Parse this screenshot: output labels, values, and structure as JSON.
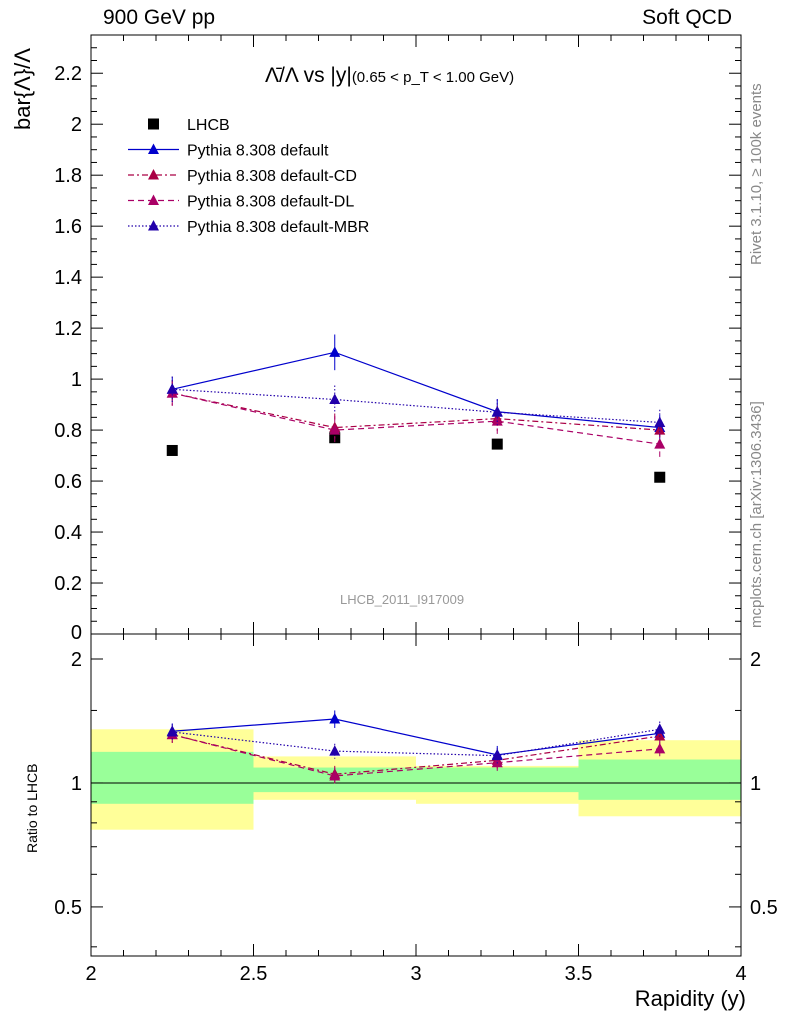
{
  "header": {
    "left_label": "900 GeV pp",
    "right_label": "Soft QCD",
    "side_label_rivet": "Rivet 3.1.10, ≥ 100k events",
    "side_label_site": "mcplots.cern.ch [arXiv:1306.3436]",
    "watermark": "LHCB_2011_I917009"
  },
  "colors": {
    "data": "#000000",
    "default": "#0000cc",
    "cd": "#aa0044",
    "dl": "#aa0066",
    "mbr": "#2200aa",
    "band_inner": "#99ff99",
    "band_outer": "#ffff99"
  },
  "chart_data": [
    {
      "type": "line",
      "panel": "main",
      "title_main": "Λ̄/Λ vs |y|",
      "title_cut": "(0.65 < p_T < 1.00 GeV)",
      "ylabel": "bar{Λ}/Λ",
      "xlabel": "",
      "xlim": [
        2,
        4
      ],
      "ylim": [
        0,
        2.35
      ],
      "xticks": [
        2,
        2.5,
        3,
        3.5,
        4
      ],
      "xtick_labels": [
        "2",
        "2.5",
        "3",
        "3.5",
        "4"
      ],
      "yticks": [
        0.2,
        0.4,
        0.6,
        0.8,
        1,
        1.2,
        1.4,
        1.6,
        1.8,
        2,
        2.2
      ],
      "ytick_labels": [
        "0.2",
        "0.4",
        "0.6",
        "0.8",
        "1",
        "1.2",
        "1.4",
        "1.6",
        "1.8",
        "2",
        "2.2"
      ],
      "ytick_zero_label": "0",
      "x": [
        2.25,
        2.75,
        3.25,
        3.75
      ],
      "series": [
        {
          "name": "LHCB",
          "key": "data",
          "style": "markers",
          "values": [
            0.72,
            0.77,
            0.745,
            0.615
          ],
          "errors": [
            0.012,
            0.015,
            0.012,
            0.012
          ]
        },
        {
          "name": "Pythia 8.308 default",
          "key": "default",
          "style": "solid",
          "values": [
            0.96,
            1.105,
            0.872,
            0.81
          ],
          "errors": [
            0.05,
            0.07,
            0.05,
            0.05
          ]
        },
        {
          "name": "Pythia 8.308 default-CD",
          "key": "cd",
          "style": "dashdot",
          "values": [
            0.945,
            0.81,
            0.845,
            0.8
          ],
          "errors": [
            0.05,
            0.055,
            0.05,
            0.05
          ]
        },
        {
          "name": "Pythia 8.308 default-DL",
          "key": "dl",
          "style": "dashed",
          "values": [
            0.945,
            0.8,
            0.835,
            0.745
          ],
          "errors": [
            0.05,
            0.055,
            0.05,
            0.05
          ]
        },
        {
          "name": "Pythia 8.308 default-MBR",
          "key": "mbr",
          "style": "dotted",
          "values": [
            0.96,
            0.92,
            0.87,
            0.83
          ],
          "errors": [
            0.05,
            0.055,
            0.05,
            0.05
          ]
        }
      ]
    },
    {
      "type": "line",
      "panel": "ratio",
      "ylabel": "Ratio to LHCB",
      "xlabel": "Rapidity (y)",
      "xlim": [
        2,
        4
      ],
      "ylim": [
        0.38,
        2.3
      ],
      "yscale": "log",
      "xticks": [
        2,
        2.5,
        3,
        3.5,
        4
      ],
      "xtick_labels": [
        "2",
        "2.5",
        "3",
        "3.5",
        "4"
      ],
      "yticks": [
        0.5,
        1,
        2
      ],
      "ytick_labels": [
        "0.5",
        "1",
        "2"
      ],
      "x": [
        2.25,
        2.75,
        3.25,
        3.75
      ],
      "bins": [
        [
          2.0,
          2.5
        ],
        [
          2.5,
          3.0
        ],
        [
          3.0,
          3.5
        ],
        [
          3.5,
          4.0
        ]
      ],
      "band_inner": [
        [
          0.89,
          1.19
        ],
        [
          0.95,
          1.09
        ],
        [
          0.95,
          1.09
        ],
        [
          0.91,
          1.14
        ]
      ],
      "band_outer": [
        [
          0.77,
          1.35
        ],
        [
          0.91,
          1.16
        ],
        [
          0.89,
          1.1
        ],
        [
          0.83,
          1.27
        ]
      ],
      "series": [
        {
          "name": "Pythia 8.308 default",
          "key": "default",
          "style": "solid",
          "values": [
            1.335,
            1.43,
            1.17,
            1.32
          ],
          "errors": [
            0.06,
            0.07,
            0.06,
            0.06
          ]
        },
        {
          "name": "Pythia 8.308 default-CD",
          "key": "cd",
          "style": "dashdot",
          "values": [
            1.31,
            1.05,
            1.135,
            1.3
          ],
          "errors": [
            0.06,
            0.05,
            0.05,
            0.06
          ]
        },
        {
          "name": "Pythia 8.308 default-DL",
          "key": "dl",
          "style": "dashed",
          "values": [
            1.31,
            1.04,
            1.12,
            1.21
          ],
          "errors": [
            0.06,
            0.05,
            0.05,
            0.06
          ]
        },
        {
          "name": "Pythia 8.308 default-MBR",
          "key": "mbr",
          "style": "dotted",
          "values": [
            1.33,
            1.195,
            1.165,
            1.35
          ],
          "errors": [
            0.06,
            0.05,
            0.05,
            0.06
          ]
        }
      ]
    }
  ]
}
